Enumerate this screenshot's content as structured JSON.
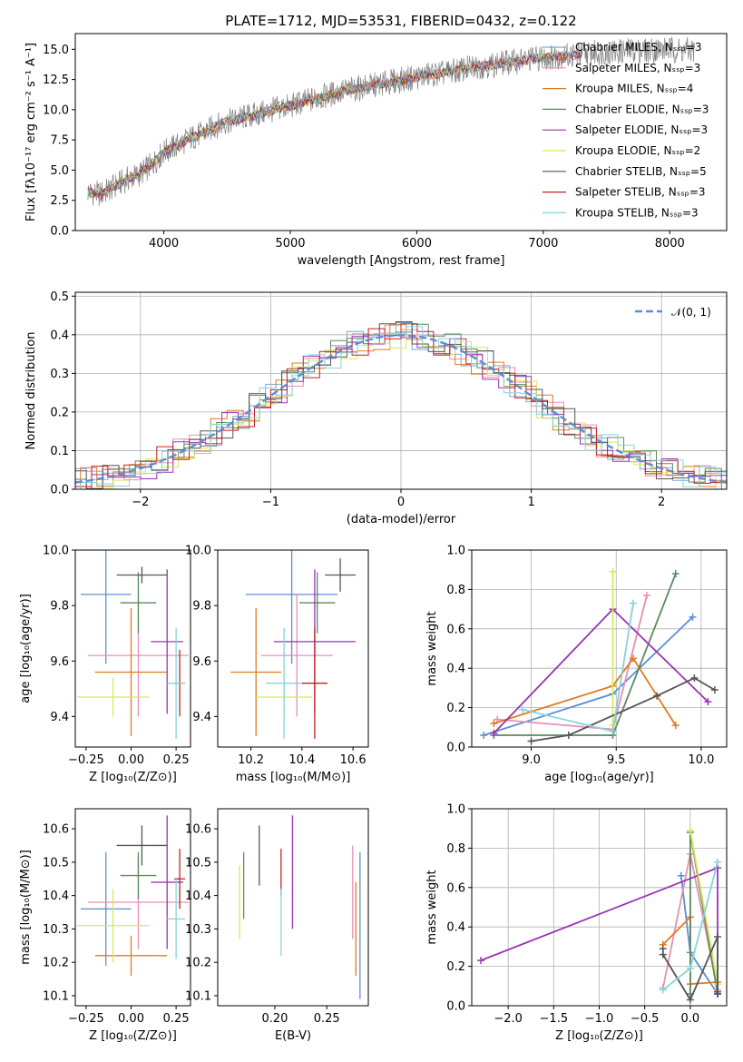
{
  "chart_data": [
    {
      "id": "spectrum",
      "type": "line",
      "title": "PLATE=1712, MJD=53531, FIBERID=0432, z=0.122",
      "xlabel": "wavelength [Angstrom, rest frame]",
      "ylabel": "Flux [fλ10⁻¹⁷ erg cm⁻² s⁻¹ A⁻¹]",
      "xlim": [
        3300,
        8450
      ],
      "ylim": [
        0,
        16.3
      ],
      "xticks": [
        4000,
        5000,
        6000,
        7000,
        8000
      ],
      "yticks": [
        0.0,
        2.5,
        5.0,
        7.5,
        10.0,
        12.5,
        15.0
      ],
      "grid": false,
      "legend_position": "lower-right",
      "series": [
        {
          "name": "Chabrier MILES, Nₛₛₚ=3",
          "color": "#7aa6d8"
        },
        {
          "name": "Salpeter MILES, Nₛₛₚ=3",
          "color": "#ea8db6"
        },
        {
          "name": "Kroupa MILES, Nₛₛₚ=4",
          "color": "#e07b22"
        },
        {
          "name": "Chabrier ELODIE, Nₛₛₚ=3",
          "color": "#5a8a5e"
        },
        {
          "name": "Salpeter ELODIE, Nₛₛₚ=3",
          "color": "#9a33b5"
        },
        {
          "name": "Kroupa ELODIE, Nₛₛₚ=2",
          "color": "#d7e85a"
        },
        {
          "name": "Chabrier STELIB, Nₛₛₚ=5",
          "color": "#555555"
        },
        {
          "name": "Salpeter STELIB, Nₛₛₚ=3",
          "color": "#c0221c"
        },
        {
          "name": "Kroupa STELIB, Nₛₛₚ=3",
          "color": "#86d3dc"
        }
      ],
      "data_series": {
        "name": "data",
        "color": "#808080",
        "x": [
          3400,
          3500,
          3600,
          3700,
          3800,
          3900,
          4000,
          4100,
          4200,
          4300,
          4400,
          4500,
          4600,
          4700,
          4800,
          4900,
          5000,
          5100,
          5200,
          5300,
          5400,
          5500,
          5600,
          5700,
          5800,
          5900,
          6000,
          6100,
          6200,
          6300,
          6400,
          6500,
          6600,
          6700,
          6800,
          6900,
          7000,
          7100,
          7200,
          7300,
          7400,
          7500,
          7600,
          7700,
          7800,
          7900,
          8000,
          8100,
          8200
        ],
        "y": [
          3.2,
          3.0,
          3.6,
          4.2,
          4.6,
          5.4,
          6.5,
          7.0,
          7.6,
          8.0,
          8.6,
          9.0,
          9.3,
          9.5,
          9.8,
          10.1,
          10.3,
          10.6,
          10.9,
          11.2,
          11.5,
          11.7,
          11.9,
          12.1,
          12.3,
          12.5,
          12.7,
          12.9,
          13.0,
          13.2,
          13.4,
          13.6,
          13.7,
          13.9,
          14.0,
          14.2,
          14.3,
          14.4,
          14.5,
          14.6,
          14.7,
          14.8,
          14.8,
          14.9,
          14.9,
          15.0,
          15.0,
          14.9,
          14.9
        ]
      }
    },
    {
      "id": "residuals",
      "type": "line",
      "xlabel": "(data-model)/error",
      "ylabel": "Normed distribution",
      "xlim": [
        -2.5,
        2.5
      ],
      "ylim": [
        0,
        0.51
      ],
      "xticks": [
        -2,
        -1,
        0,
        1,
        2
      ],
      "yticks": [
        0.0,
        0.1,
        0.2,
        0.3,
        0.4,
        0.5
      ],
      "grid": true,
      "legend_position": "top-right",
      "gaussian": {
        "name": "𝒩(0, 1)",
        "color": "#5b8ed6",
        "mean": 0,
        "sigma": 1
      }
    },
    {
      "id": "age-vs-Z",
      "type": "scatter",
      "xlabel": "Z [log₁₀(Z/Z⊙)]",
      "ylabel": "age  [log₁₀(age/yr)]",
      "xlim": [
        -0.31,
        0.33
      ],
      "ylim": [
        9.29,
        10.0
      ],
      "xticks": [
        -0.25,
        0.0,
        0.25
      ],
      "yticks": [
        9.4,
        9.6,
        9.8,
        10.0
      ],
      "grid": false,
      "points": [
        {
          "color": "#5b8ed6",
          "x": -0.14,
          "y": 9.84,
          "xerr": 0.14,
          "yerr": 0.25
        },
        {
          "color": "#ea8db6",
          "x": 0.04,
          "y": 9.62,
          "xerr": 0.28,
          "yerr": 0.22
        },
        {
          "color": "#e07b22",
          "x": 0.0,
          "y": 9.56,
          "xerr": 0.2,
          "yerr": 0.23
        },
        {
          "color": "#5a8a5e",
          "x": 0.04,
          "y": 9.81,
          "xerr": 0.1,
          "yerr": 0.11
        },
        {
          "color": "#9a33b5",
          "x": 0.2,
          "y": 9.67,
          "xerr": 0.09,
          "yerr": 0.26
        },
        {
          "color": "#d7e85a",
          "x": -0.1,
          "y": 9.47,
          "xerr": 0.2,
          "yerr": 0.07
        },
        {
          "color": "#555555",
          "x": 0.06,
          "y": 9.91,
          "xerr": 0.14,
          "yerr": 0.03
        },
        {
          "color": "#c0221c",
          "x": 0.27,
          "y": 9.52,
          "xerr": 0.03,
          "yerr": 0.12
        },
        {
          "color": "#86d3dc",
          "x": 0.25,
          "y": 9.52,
          "xerr": 0.05,
          "yerr": 0.2
        }
      ]
    },
    {
      "id": "age-vs-mass",
      "type": "scatter",
      "xlabel": "mass [log₁₀(M/M⊙)]",
      "ylabel": "",
      "xlim": [
        10.07,
        10.66
      ],
      "ylim": [
        9.29,
        10.0
      ],
      "xticks": [
        10.2,
        10.4,
        10.6
      ],
      "yticks": [
        9.4,
        9.6,
        9.8,
        10.0
      ],
      "grid": false,
      "points": [
        {
          "color": "#5b8ed6",
          "x": 10.36,
          "y": 9.84,
          "xerr": 0.18,
          "yerr": 0.25
        },
        {
          "color": "#ea8db6",
          "x": 10.38,
          "y": 9.62,
          "xerr": 0.14,
          "yerr": 0.22
        },
        {
          "color": "#e07b22",
          "x": 10.22,
          "y": 9.56,
          "xerr": 0.1,
          "yerr": 0.23
        },
        {
          "color": "#5a8a5e",
          "x": 10.46,
          "y": 9.81,
          "xerr": 0.07,
          "yerr": 0.11
        },
        {
          "color": "#9a33b5",
          "x": 10.45,
          "y": 9.67,
          "xerr": 0.16,
          "yerr": 0.26
        },
        {
          "color": "#d7e85a",
          "x": 10.33,
          "y": 9.47,
          "xerr": 0.11,
          "yerr": 0.07
        },
        {
          "color": "#555555",
          "x": 10.55,
          "y": 9.91,
          "xerr": 0.06,
          "yerr": 0.06
        },
        {
          "color": "#c0221c",
          "x": 10.45,
          "y": 9.52,
          "xerr": 0.05,
          "yerr": 0.2
        },
        {
          "color": "#86d3dc",
          "x": 10.33,
          "y": 9.52,
          "xerr": 0.07,
          "yerr": 0.2
        }
      ]
    },
    {
      "id": "weight-vs-age",
      "type": "line",
      "xlabel": "age  [log₁₀(age/yr)]",
      "ylabel": "mass weight",
      "xlim": [
        8.65,
        10.15
      ],
      "ylim": [
        0,
        1.0
      ],
      "xticks": [
        9.0,
        9.5,
        10.0
      ],
      "yticks": [
        0.0,
        0.2,
        0.4,
        0.6,
        0.8,
        1.0
      ],
      "grid": true,
      "series": [
        {
          "color": "#5b8ed6",
          "x": [
            8.72,
            9.48,
            9.95
          ],
          "y": [
            0.06,
            0.27,
            0.66
          ]
        },
        {
          "color": "#ea8db6",
          "x": [
            8.8,
            9.48,
            9.68
          ],
          "y": [
            0.14,
            0.09,
            0.77
          ]
        },
        {
          "color": "#e07b22",
          "x": [
            8.78,
            9.48,
            9.6,
            9.85
          ],
          "y": [
            0.12,
            0.31,
            0.45,
            0.11
          ]
        },
        {
          "color": "#5a8a5e",
          "x": [
            8.78,
            9.48,
            9.85
          ],
          "y": [
            0.06,
            0.06,
            0.88
          ]
        },
        {
          "color": "#9a33b5",
          "x": [
            8.78,
            9.48,
            10.04
          ],
          "y": [
            0.07,
            0.7,
            0.23
          ]
        },
        {
          "color": "#d7e85a",
          "x": [
            9.48,
            9.48
          ],
          "y": [
            0.11,
            0.89
          ]
        },
        {
          "color": "#555555",
          "x": [
            9.0,
            9.22,
            9.74,
            9.96,
            10.08
          ],
          "y": [
            0.03,
            0.06,
            0.26,
            0.35,
            0.29
          ]
        },
        {
          "color": "#86d3dc",
          "x": [
            8.95,
            9.48,
            9.6
          ],
          "y": [
            0.19,
            0.08,
            0.73
          ]
        }
      ]
    },
    {
      "id": "mass-vs-Z",
      "type": "scatter",
      "xlabel": "Z [log₁₀(Z/Z⊙)]",
      "ylabel": "mass [log₁₀(M/M⊙)]",
      "xlim": [
        -0.31,
        0.33
      ],
      "ylim": [
        10.07,
        10.66
      ],
      "xticks": [
        -0.25,
        0.0,
        0.25
      ],
      "yticks": [
        10.1,
        10.2,
        10.3,
        10.4,
        10.5,
        10.6
      ],
      "grid": false,
      "points": [
        {
          "color": "#5b8ed6",
          "x": -0.14,
          "y": 10.36,
          "xerr": 0.14,
          "yerr": 0.17
        },
        {
          "color": "#ea8db6",
          "x": 0.04,
          "y": 10.38,
          "xerr": 0.28,
          "yerr": 0.14
        },
        {
          "color": "#e07b22",
          "x": 0.0,
          "y": 10.22,
          "xerr": 0.2,
          "yerr": 0.06
        },
        {
          "color": "#5a8a5e",
          "x": 0.04,
          "y": 10.46,
          "xerr": 0.1,
          "yerr": 0.07
        },
        {
          "color": "#9a33b5",
          "x": 0.2,
          "y": 10.44,
          "xerr": 0.09,
          "yerr": 0.2
        },
        {
          "color": "#d7e85a",
          "x": -0.1,
          "y": 10.31,
          "xerr": 0.2,
          "yerr": 0.11
        },
        {
          "color": "#555555",
          "x": 0.06,
          "y": 10.55,
          "xerr": 0.14,
          "yerr": 0.06
        },
        {
          "color": "#c0221c",
          "x": 0.27,
          "y": 10.45,
          "xerr": 0.03,
          "yerr": 0.09
        },
        {
          "color": "#86d3dc",
          "x": 0.25,
          "y": 10.33,
          "xerr": 0.05,
          "yerr": 0.12
        }
      ]
    },
    {
      "id": "mass-vs-ebv",
      "type": "scatter",
      "xlabel": "E(B-V)",
      "ylabel": "",
      "xlim": [
        0.145,
        0.29
      ],
      "ylim": [
        10.07,
        10.66
      ],
      "xticks": [
        0.2,
        0.25
      ],
      "yticks": [
        10.1,
        10.2,
        10.3,
        10.4,
        10.5,
        10.6
      ],
      "grid": false,
      "points": [
        {
          "color": "#5b8ed6",
          "x": 0.282,
          "y": 10.31,
          "yerr": 0.22
        },
        {
          "color": "#ea8db6",
          "x": 0.275,
          "y": 10.41,
          "yerr": 0.14
        },
        {
          "color": "#e07b22",
          "x": 0.278,
          "y": 10.3,
          "yerr": 0.14
        },
        {
          "color": "#5a8a5e",
          "x": 0.17,
          "y": 10.43,
          "yerr": 0.1
        },
        {
          "color": "#9a33b5",
          "x": 0.217,
          "y": 10.47,
          "yerr": 0.17
        },
        {
          "color": "#d7e85a",
          "x": 0.166,
          "y": 10.38,
          "yerr": 0.11
        },
        {
          "color": "#555555",
          "x": 0.185,
          "y": 10.52,
          "yerr": 0.09
        },
        {
          "color": "#c0221c",
          "x": 0.206,
          "y": 10.47,
          "yerr": 0.07
        },
        {
          "color": "#86d3dc",
          "x": 0.206,
          "y": 10.32,
          "yerr": 0.1
        }
      ]
    },
    {
      "id": "weight-vs-Z",
      "type": "line",
      "xlabel": "Z [log₁₀(Z/Z⊙)]",
      "ylabel": "mass weight",
      "xlim": [
        -2.4,
        0.4
      ],
      "ylim": [
        0,
        1.0
      ],
      "xticks": [
        -2.0,
        -1.5,
        -1.0,
        -0.5,
        0.0
      ],
      "yticks": [
        0.0,
        0.2,
        0.4,
        0.6,
        0.8,
        1.0
      ],
      "grid": true,
      "series": [
        {
          "color": "#5b8ed6",
          "x": [
            -0.1,
            0.0,
            0.3
          ],
          "y": [
            0.66,
            0.27,
            0.06
          ]
        },
        {
          "color": "#ea8db6",
          "x": [
            -0.3,
            0.0,
            0.3
          ],
          "y": [
            0.09,
            0.77,
            0.08
          ]
        },
        {
          "color": "#e07b22",
          "x": [
            -0.3,
            0.0,
            0.0,
            0.3
          ],
          "y": [
            0.31,
            0.45,
            0.11,
            0.12
          ]
        },
        {
          "color": "#5a8a5e",
          "x": [
            0.0,
            0.0,
            0.3
          ],
          "y": [
            0.06,
            0.88,
            0.06
          ]
        },
        {
          "color": "#9a33b5",
          "x": [
            -2.3,
            0.3,
            0.3
          ],
          "y": [
            0.23,
            0.7,
            0.07
          ]
        },
        {
          "color": "#d7e85a",
          "x": [
            0.0,
            0.3
          ],
          "y": [
            0.89,
            0.11
          ]
        },
        {
          "color": "#555555",
          "x": [
            -0.3,
            -0.3,
            0.0,
            0.3,
            0.3
          ],
          "y": [
            0.29,
            0.26,
            0.03,
            0.35,
            0.06
          ]
        },
        {
          "color": "#86d3dc",
          "x": [
            -0.3,
            0.0,
            0.3
          ],
          "y": [
            0.08,
            0.19,
            0.73
          ]
        }
      ]
    }
  ]
}
